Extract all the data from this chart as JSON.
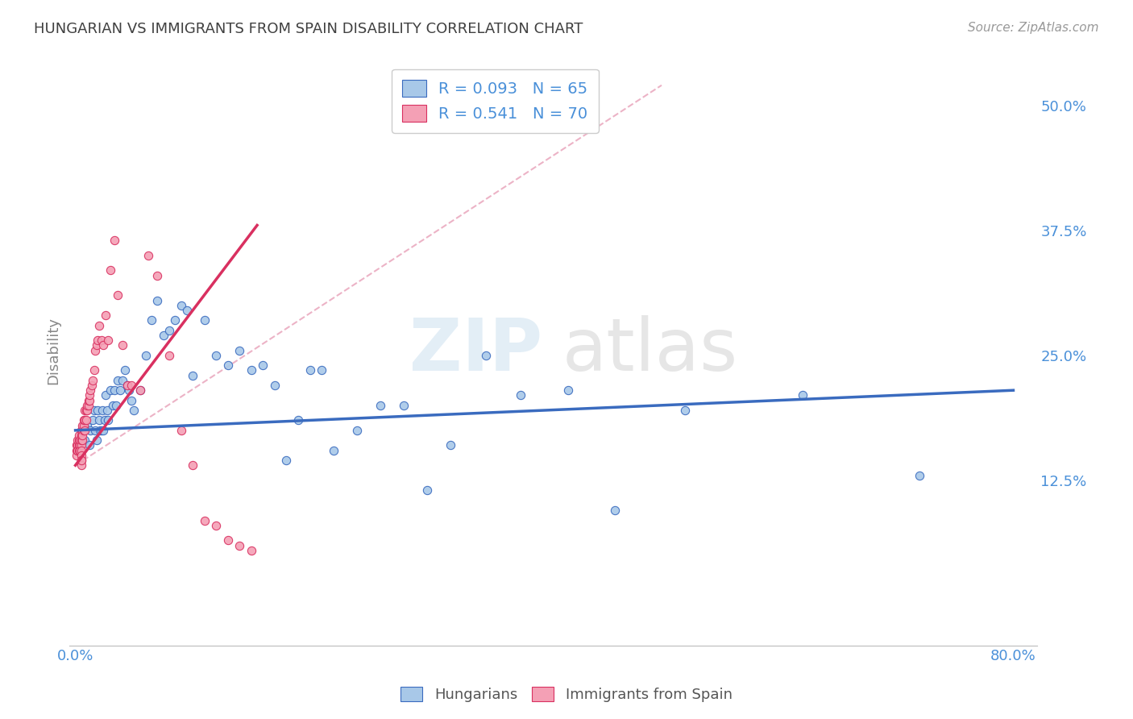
{
  "title": "HUNGARIAN VS IMMIGRANTS FROM SPAIN DISABILITY CORRELATION CHART",
  "source": "Source: ZipAtlas.com",
  "ylabel": "Disability",
  "color_hungarian": "#a8c8e8",
  "color_spain": "#f4a0b5",
  "trendline_hungarian": "#3a6bbf",
  "trendline_spain": "#d93060",
  "trendline_dashed_color": "#e8a0b8",
  "background_color": "#ffffff",
  "grid_color": "#dddddd",
  "axis_label_color": "#4a90d9",
  "title_color": "#404040",
  "ytick_labels": [
    "12.5%",
    "25.0%",
    "37.5%",
    "50.0%"
  ],
  "ytick_values": [
    0.125,
    0.25,
    0.375,
    0.5
  ],
  "xlim": [
    -0.005,
    0.82
  ],
  "ylim": [
    -0.04,
    0.55
  ],
  "hun_trendline_x": [
    0.0,
    0.8
  ],
  "hun_trendline_y": [
    0.175,
    0.215
  ],
  "esp_trendline_x": [
    0.0,
    0.155
  ],
  "esp_trendline_y": [
    0.14,
    0.38
  ],
  "dashed_line_x": [
    0.0,
    0.5
  ],
  "dashed_line_y": [
    0.14,
    0.52
  ],
  "hungarian_scatter_x": [
    0.005,
    0.008,
    0.01,
    0.012,
    0.013,
    0.015,
    0.016,
    0.017,
    0.018,
    0.019,
    0.02,
    0.021,
    0.022,
    0.023,
    0.024,
    0.025,
    0.026,
    0.027,
    0.028,
    0.03,
    0.032,
    0.033,
    0.035,
    0.036,
    0.038,
    0.04,
    0.042,
    0.044,
    0.046,
    0.048,
    0.05,
    0.055,
    0.06,
    0.065,
    0.07,
    0.075,
    0.08,
    0.085,
    0.09,
    0.095,
    0.1,
    0.11,
    0.12,
    0.13,
    0.14,
    0.15,
    0.16,
    0.17,
    0.18,
    0.19,
    0.2,
    0.21,
    0.22,
    0.24,
    0.26,
    0.28,
    0.3,
    0.32,
    0.35,
    0.38,
    0.42,
    0.46,
    0.52,
    0.62,
    0.72
  ],
  "hungarian_scatter_y": [
    0.175,
    0.165,
    0.18,
    0.16,
    0.175,
    0.185,
    0.195,
    0.175,
    0.165,
    0.195,
    0.185,
    0.175,
    0.175,
    0.195,
    0.175,
    0.185,
    0.21,
    0.195,
    0.185,
    0.215,
    0.2,
    0.215,
    0.2,
    0.225,
    0.215,
    0.225,
    0.235,
    0.22,
    0.215,
    0.205,
    0.195,
    0.215,
    0.25,
    0.285,
    0.305,
    0.27,
    0.275,
    0.285,
    0.3,
    0.295,
    0.23,
    0.285,
    0.25,
    0.24,
    0.255,
    0.235,
    0.24,
    0.22,
    0.145,
    0.185,
    0.235,
    0.235,
    0.155,
    0.175,
    0.2,
    0.2,
    0.115,
    0.16,
    0.25,
    0.21,
    0.215,
    0.095,
    0.195,
    0.21,
    0.13
  ],
  "spain_scatter_x": [
    0.001,
    0.001,
    0.001,
    0.002,
    0.002,
    0.002,
    0.002,
    0.003,
    0.003,
    0.003,
    0.003,
    0.004,
    0.004,
    0.004,
    0.005,
    0.005,
    0.005,
    0.005,
    0.006,
    0.006,
    0.006,
    0.006,
    0.007,
    0.007,
    0.007,
    0.008,
    0.008,
    0.008,
    0.009,
    0.009,
    0.01,
    0.01,
    0.011,
    0.011,
    0.012,
    0.012,
    0.013,
    0.014,
    0.015,
    0.016,
    0.017,
    0.018,
    0.019,
    0.02,
    0.022,
    0.024,
    0.026,
    0.028,
    0.03,
    0.033,
    0.036,
    0.04,
    0.044,
    0.048,
    0.055,
    0.062,
    0.07,
    0.08,
    0.09,
    0.1,
    0.11,
    0.12,
    0.13,
    0.14,
    0.15,
    0.005,
    0.005,
    0.005,
    0.005,
    0.005
  ],
  "spain_scatter_y": [
    0.16,
    0.155,
    0.15,
    0.155,
    0.16,
    0.165,
    0.155,
    0.155,
    0.16,
    0.165,
    0.17,
    0.16,
    0.155,
    0.165,
    0.16,
    0.165,
    0.17,
    0.175,
    0.165,
    0.175,
    0.18,
    0.17,
    0.175,
    0.18,
    0.185,
    0.175,
    0.185,
    0.195,
    0.185,
    0.195,
    0.195,
    0.2,
    0.2,
    0.205,
    0.205,
    0.21,
    0.215,
    0.22,
    0.225,
    0.235,
    0.255,
    0.26,
    0.265,
    0.28,
    0.265,
    0.26,
    0.29,
    0.265,
    0.335,
    0.365,
    0.31,
    0.26,
    0.22,
    0.22,
    0.215,
    0.35,
    0.33,
    0.25,
    0.175,
    0.14,
    0.085,
    0.08,
    0.065,
    0.06,
    0.055,
    0.155,
    0.15,
    0.145,
    0.14,
    0.145
  ]
}
